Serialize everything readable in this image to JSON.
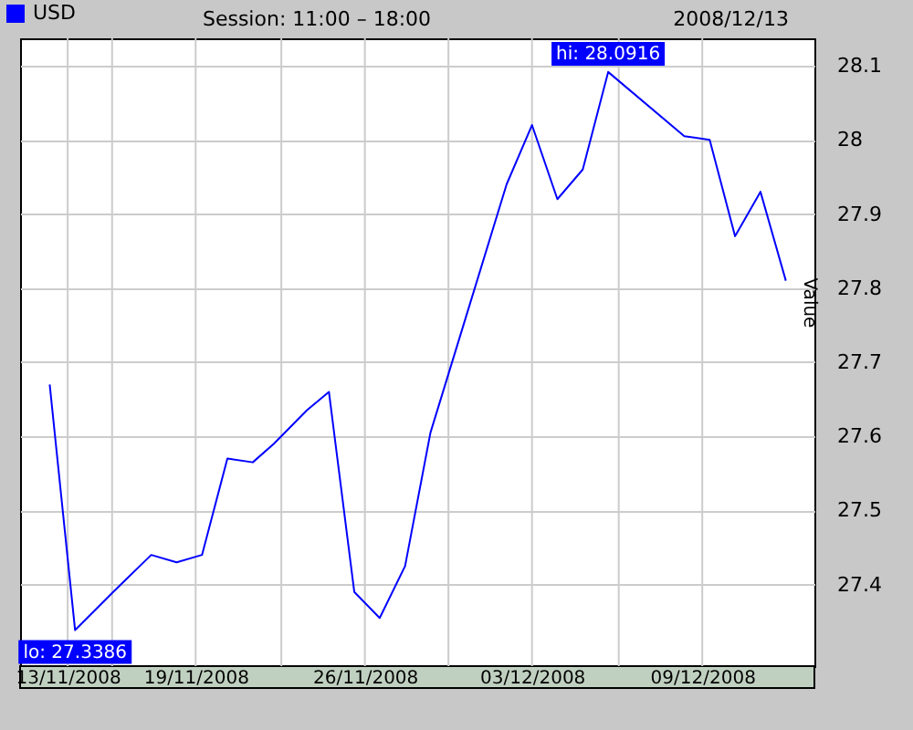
{
  "chart_data": {
    "type": "line",
    "title": "Session: 11:00 – 18:00",
    "subtitle": "2008/12/13",
    "ylabel": "Value",
    "x": [
      "2008-11-13",
      "2008-11-14",
      "2008-11-15T12:00",
      "2008-11-17",
      "2008-11-18",
      "2008-11-19",
      "2008-11-20",
      "2008-11-21",
      "2008-11-21T20:00",
      "2008-11-23T03:00",
      "2008-11-24",
      "2008-11-25",
      "2008-11-26",
      "2008-11-27",
      "2008-11-28",
      "2008-12-01",
      "2008-12-02",
      "2008-12-03",
      "2008-12-04",
      "2008-12-05",
      "2008-12-08",
      "2008-12-09",
      "2008-12-10",
      "2008-12-11",
      "2008-12-12"
    ],
    "series": [
      {
        "name": "USD",
        "color": "#0000ff",
        "values": [
          27.67,
          27.3386,
          27.39,
          27.44,
          27.43,
          27.44,
          27.57,
          27.565,
          27.59,
          27.635,
          27.66,
          27.39,
          27.355,
          27.425,
          27.605,
          27.94,
          28.02,
          27.92,
          27.96,
          28.0916,
          28.005,
          28.0,
          27.87,
          27.93,
          27.81
        ]
      }
    ],
    "annotations": [
      {
        "text": "lo: 27.3386",
        "x": "2008-11-14",
        "y": 27.3386
      },
      {
        "text": "hi: 28.0916",
        "x": "2008-12-05",
        "y": 28.0916
      }
    ],
    "xlim": [
      "2008-11-11T20:00",
      "2008-12-13T03:00"
    ],
    "xticks": [
      {
        "value": "2008-11-13T17:00",
        "label": "13/11/2008"
      },
      {
        "value": "2008-11-15T11:00",
        "label": null
      },
      {
        "value": "2008-11-18T18:00",
        "label": "19/11/2008"
      },
      {
        "value": "2008-11-22T03:00",
        "label": null
      },
      {
        "value": "2008-11-25T10:00",
        "label": "26/11/2008"
      },
      {
        "value": "2008-11-28T17:00",
        "label": null
      },
      {
        "value": "2008-12-02T00:00",
        "label": "03/12/2008"
      },
      {
        "value": "2008-12-05T10:00",
        "label": null
      },
      {
        "value": "2008-12-08T17:00",
        "label": "09/12/2008"
      }
    ],
    "ylim": [
      27.29,
      28.137
    ],
    "yticks": [
      27.4,
      27.5,
      27.6,
      27.7,
      27.8,
      27.9,
      28.0,
      28.1
    ],
    "grid": true,
    "legend": "top left",
    "marker": "none",
    "line_style": "solid"
  }
}
